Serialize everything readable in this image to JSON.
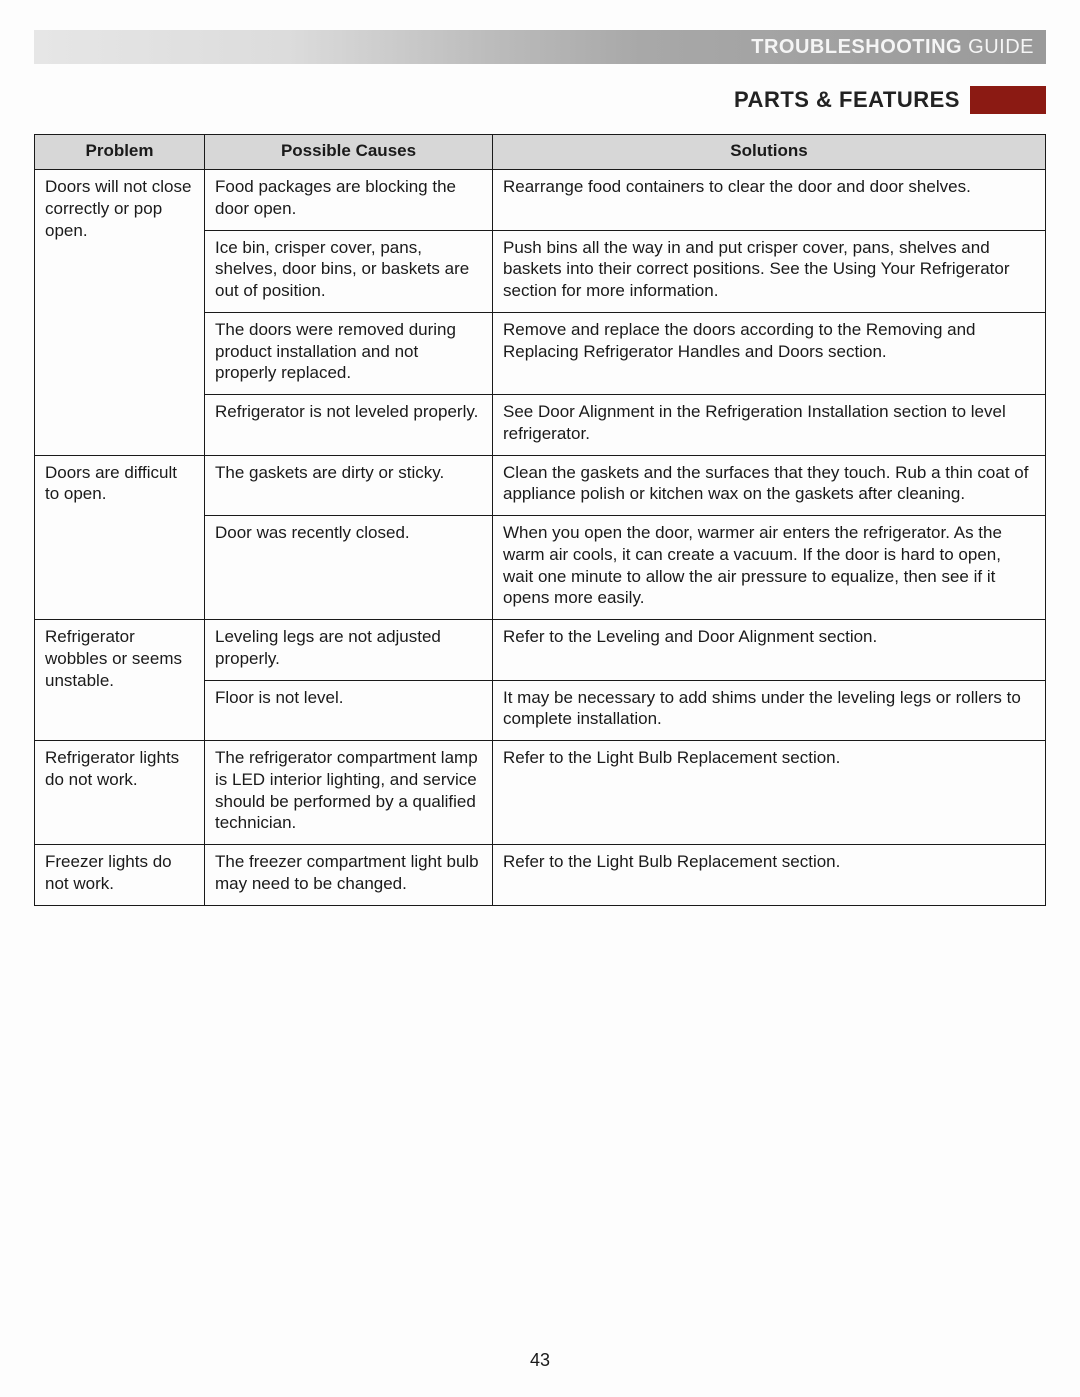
{
  "banner": {
    "left": "TROUBLESHOOTING",
    "right": "GUIDE"
  },
  "section": {
    "title": "PARTS & FEATURES",
    "box_color": "#8b1a13"
  },
  "headers": {
    "problem": "Problem",
    "causes": "Possible Causes",
    "solutions": "Solutions"
  },
  "rows": [
    {
      "problem": "Doors will not close correctly or pop open.",
      "cause": "Food packages are blocking the door open.",
      "solution": "Rearrange food containers to clear the door and door shelves."
    },
    {
      "problem": "",
      "cause": "Ice bin, crisper cover, pans, shelves, door bins, or baskets are out of position.",
      "solution": "Push bins all the way in and put crisper cover, pans, shelves and baskets into their correct positions. See the Using Your Refrigerator section for more information."
    },
    {
      "problem": "",
      "cause": "The doors were removed during product installation and not properly replaced.",
      "solution": "Remove and replace the doors according to the Removing and Replacing Refrigerator Handles and Doors section."
    },
    {
      "problem": "",
      "cause": "Refrigerator is not leveled properly.",
      "solution": "See Door Alignment in the Refrigeration Installation section to level refrigerator."
    },
    {
      "problem": "Doors are difficult to open.",
      "cause": "The gaskets are dirty or sticky.",
      "solution": "Clean the gaskets and the surfaces that they touch. Rub a thin coat of appliance polish or kitchen wax on the gaskets after cleaning."
    },
    {
      "problem": "",
      "cause": "Door was recently closed.",
      "solution": "When you open the door, warmer air enters the refrigerator. As the warm air cools, it can create a vacuum. If the door is hard to open, wait one minute to allow the air pressure to equalize, then see if it opens more easily."
    },
    {
      "problem": "Refrigerator wobbles or seems unstable.",
      "cause": "Leveling legs are not adjusted properly.",
      "solution": "Refer to the Leveling and Door Alignment section."
    },
    {
      "problem": "",
      "cause": "Floor is not level.",
      "solution": "It may be necessary to add shims under the leveling legs or rollers to complete installation."
    },
    {
      "problem": "Refrigerator lights do not work.",
      "cause": "The refrigerator compartment lamp is LED interior lighting, and service should be performed by a qualified technician.",
      "solution": "Refer to the Light Bulb Replacement section."
    },
    {
      "problem": "Freezer lights do not work.",
      "cause": "The freezer compartment light bulb may need to be changed.",
      "solution": "Refer to the Light Bulb Replacement section."
    }
  ],
  "rowspans": [
    4,
    0,
    0,
    0,
    2,
    0,
    2,
    0,
    1,
    1
  ],
  "page_number": "43",
  "fontsize_body": 17,
  "fontsize_header": 17,
  "fontsize_title": 22,
  "colors": {
    "header_bg": "#d7d7d7",
    "border": "#1a1a1a",
    "text": "#1a1a1a",
    "banner_text": "#f5f5f5"
  }
}
